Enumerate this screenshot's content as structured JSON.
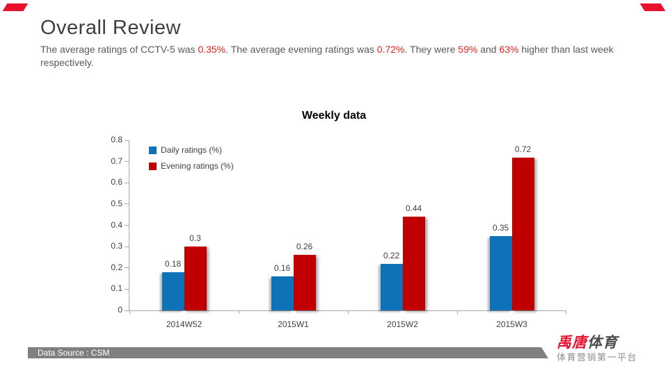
{
  "header": {
    "title": "Overall Review",
    "subtitle_segments": [
      {
        "text": "The average ratings of CCTV-5 was ",
        "red": false
      },
      {
        "text": "0.35%",
        "red": true
      },
      {
        "text": ". The average evening ratings was ",
        "red": false
      },
      {
        "text": "0.72%",
        "red": true
      },
      {
        "text": ". They were ",
        "red": false
      },
      {
        "text": "59%",
        "red": true
      },
      {
        "text": " and ",
        "red": false
      },
      {
        "text": "63%",
        "red": true
      },
      {
        "text": " higher than last week respectively.",
        "red": false
      }
    ],
    "highlight_color": "#e2231a"
  },
  "chart_data": {
    "type": "bar",
    "title": "Weekly data",
    "categories": [
      "2014W52",
      "2015W1",
      "2015W2",
      "2015W3"
    ],
    "series": [
      {
        "name": "Daily ratings (%)",
        "color": "#0e72b8",
        "values": [
          0.18,
          0.16,
          0.22,
          0.35
        ]
      },
      {
        "name": "Evening ratings (%)",
        "color": "#c00000",
        "values": [
          0.3,
          0.26,
          0.44,
          0.72
        ]
      }
    ],
    "ylim": [
      0,
      0.8
    ],
    "ytick_labels": [
      "0",
      "0.1",
      "0.2",
      "0.3",
      "0.4",
      "0.5",
      "0.6",
      "0.7",
      "0.8"
    ],
    "grid": false,
    "legend_position": "top-left",
    "axis_color": "#a6a6a6"
  },
  "footer": {
    "source_text": "Data Source : CSM"
  },
  "logo": {
    "main_red": "禹唐",
    "main_dark": "体育",
    "tagline": "体育营销第一平台"
  }
}
